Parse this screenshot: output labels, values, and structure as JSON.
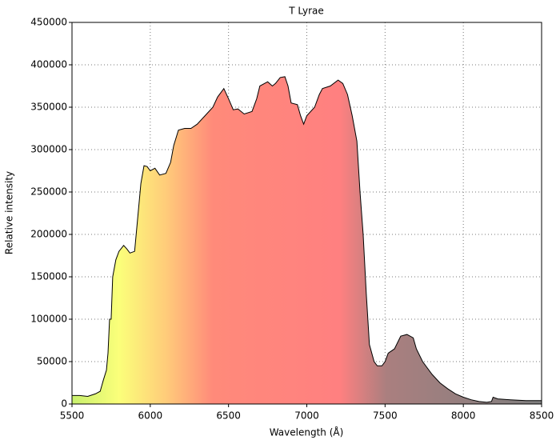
{
  "chart_data": {
    "type": "area",
    "title": "T Lyrae",
    "xlabel": "Wavelength (Å)",
    "ylabel": "Relative intensity",
    "x": [
      5500,
      5550,
      5600,
      5650,
      5680,
      5700,
      5720,
      5730,
      5740,
      5750,
      5760,
      5780,
      5800,
      5830,
      5850,
      5870,
      5900,
      5920,
      5940,
      5960,
      5980,
      6000,
      6030,
      6060,
      6100,
      6130,
      6150,
      6180,
      6220,
      6260,
      6300,
      6350,
      6400,
      6430,
      6470,
      6500,
      6530,
      6560,
      6600,
      6650,
      6680,
      6700,
      6750,
      6780,
      6800,
      6830,
      6860,
      6880,
      6900,
      6940,
      6960,
      6980,
      7000,
      7050,
      7080,
      7100,
      7150,
      7200,
      7230,
      7260,
      7290,
      7320,
      7340,
      7360,
      7380,
      7400,
      7430,
      7450,
      7480,
      7500,
      7520,
      7560,
      7600,
      7640,
      7680,
      7700,
      7740,
      7800,
      7850,
      7900,
      7950,
      8000,
      8050,
      8100,
      8150,
      8180,
      8190,
      8220,
      8300,
      8400,
      8500
    ],
    "values": [
      10000,
      10000,
      9000,
      12000,
      15000,
      28000,
      40000,
      60000,
      100000,
      100000,
      150000,
      170000,
      180000,
      187000,
      183000,
      178000,
      180000,
      220000,
      260000,
      281000,
      280000,
      275000,
      278000,
      270000,
      272000,
      285000,
      305000,
      323000,
      325000,
      325000,
      330000,
      340000,
      350000,
      362000,
      372000,
      360000,
      347000,
      348000,
      342000,
      345000,
      360000,
      375000,
      380000,
      375000,
      378000,
      385000,
      386000,
      375000,
      355000,
      353000,
      340000,
      330000,
      340000,
      350000,
      365000,
      372000,
      375000,
      382000,
      378000,
      365000,
      340000,
      310000,
      250000,
      200000,
      130000,
      70000,
      50000,
      45000,
      45000,
      50000,
      60000,
      65000,
      80000,
      82000,
      78000,
      65000,
      50000,
      35000,
      25000,
      18000,
      12000,
      8000,
      5000,
      3000,
      2000,
      3000,
      8000,
      6000,
      5000,
      4000,
      4000
    ],
    "color": "#000000",
    "xlim": [
      5500,
      8500
    ],
    "xticks": [
      5500,
      6000,
      6500,
      7000,
      7500,
      8000,
      8500
    ],
    "ylim": [
      0,
      450000
    ],
    "yticks": [
      0,
      50000,
      100000,
      150000,
      200000,
      250000,
      300000,
      350000,
      400000,
      450000
    ],
    "grid": true
  }
}
